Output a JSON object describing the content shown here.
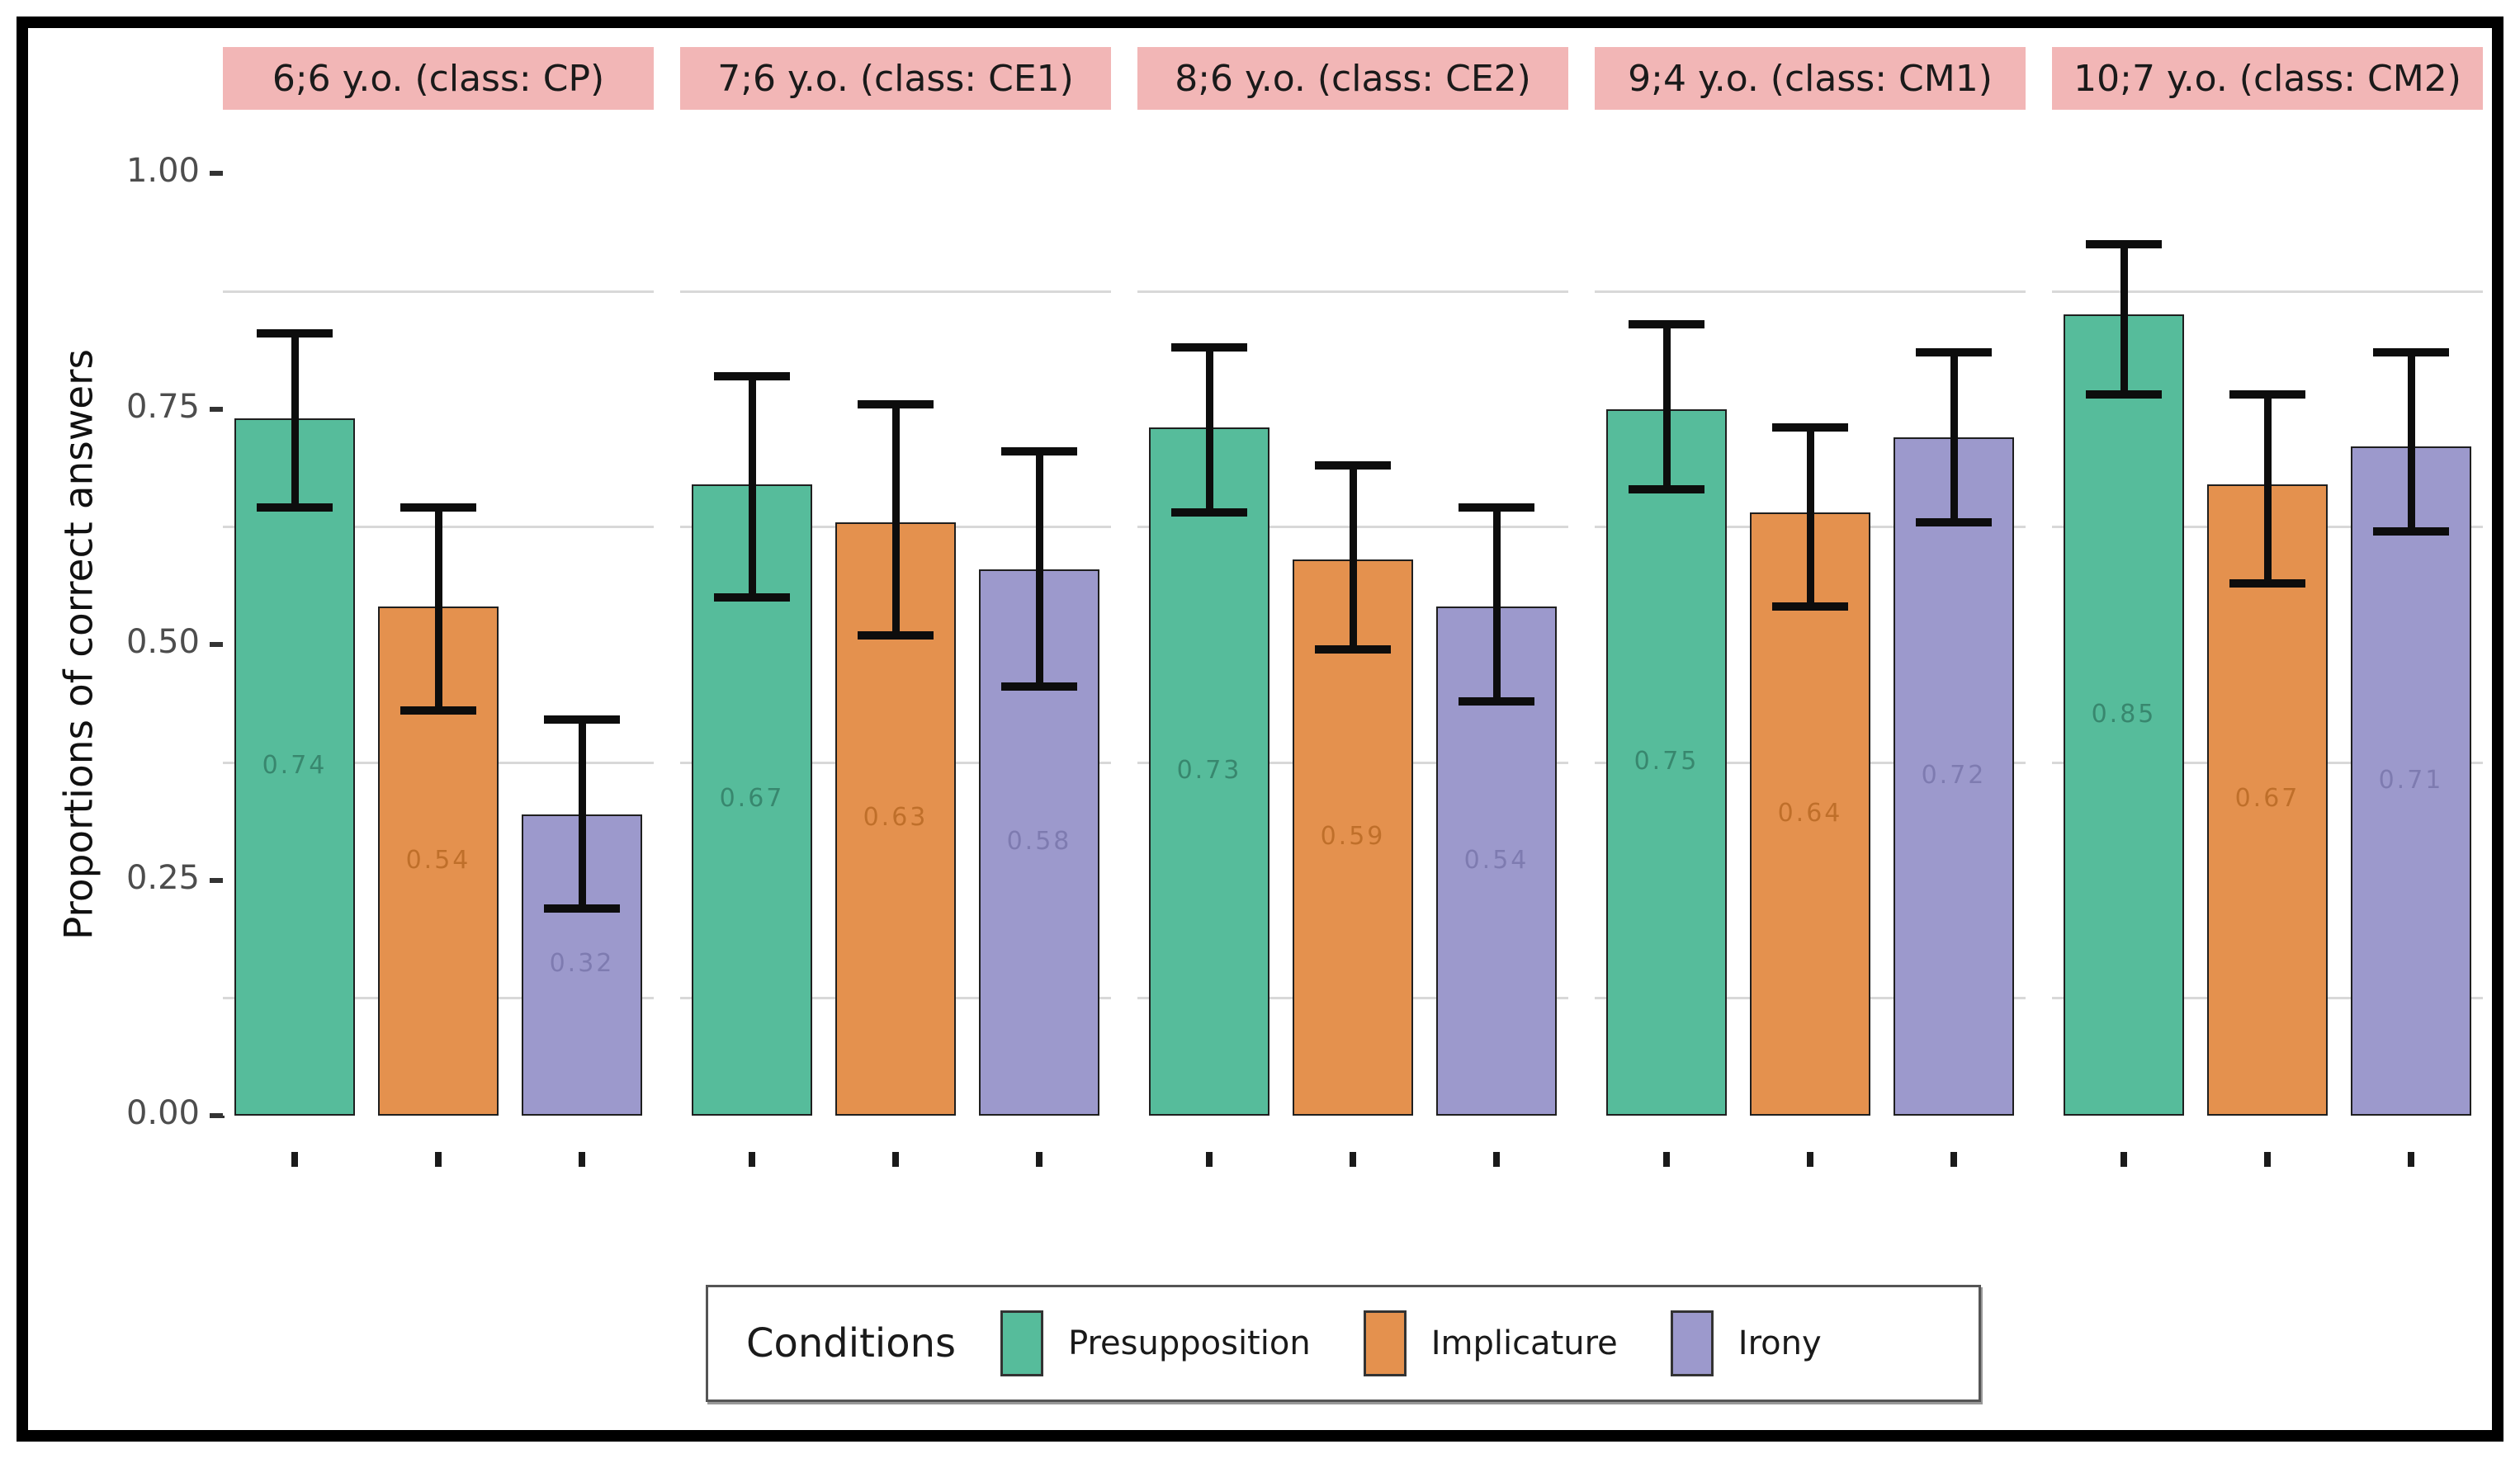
{
  "figure": {
    "background": "#ffffff",
    "frame_color": "#000000",
    "strip_bg": "#F2B6B6",
    "gridline_color": "#d8d8d8",
    "error_bar_color": "#0d0d0d"
  },
  "y_axis": {
    "title": "Proportions of correct answers",
    "ticks": [
      {
        "label": "1.00",
        "value": 1.0
      },
      {
        "label": "0.75",
        "value": 0.75
      },
      {
        "label": "0.50",
        "value": 0.5
      },
      {
        "label": "0.25",
        "value": 0.25
      },
      {
        "label": "0.00",
        "value": 0.0
      }
    ]
  },
  "legend": {
    "title": "Conditions",
    "items": [
      {
        "label": "Presupposition",
        "color": "#56BC9B"
      },
      {
        "label": "Implicature",
        "color": "#E4914E"
      },
      {
        "label": "Irony",
        "color": "#9C99CC"
      }
    ]
  },
  "chart_data": {
    "type": "bar",
    "subtype": "faceted-grouped-bar-with-error-bars",
    "title": "",
    "xlabel": "",
    "ylabel": "Proportions of correct answers",
    "ylim": [
      0,
      1.05
    ],
    "yticks": [
      0,
      0.25,
      0.5,
      0.75,
      1.0
    ],
    "minor_gridlines": [
      0.125,
      0.375,
      0.625,
      0.875
    ],
    "grid": "minor-horizontal-only",
    "legend_position": "bottom",
    "legend_title": "Conditions",
    "series_names": [
      "Presupposition",
      "Implicature",
      "Irony"
    ],
    "series_colors": {
      "Presupposition": "#56BC9B",
      "Implicature": "#E4914E",
      "Irony": "#9C99CC"
    },
    "value_label_colors": {
      "Presupposition": "#35826A",
      "Implicature": "#BC6C27",
      "Irony": "#7B78AE"
    },
    "facets": [
      {
        "label": "6;6 y.o. (class: CP)",
        "bars": [
          {
            "condition": "Presupposition",
            "value": 0.74,
            "label": "0.74",
            "ci": [
              0.645,
              0.83
            ]
          },
          {
            "condition": "Implicature",
            "value": 0.54,
            "label": "0.54",
            "ci": [
              0.43,
              0.645
            ]
          },
          {
            "condition": "Irony",
            "value": 0.32,
            "label": "0.32",
            "ci": [
              0.22,
              0.42
            ]
          }
        ]
      },
      {
        "label": "7;6 y.o. (class: CE1)",
        "bars": [
          {
            "condition": "Presupposition",
            "value": 0.67,
            "label": "0.67",
            "ci": [
              0.55,
              0.785
            ]
          },
          {
            "condition": "Implicature",
            "value": 0.63,
            "label": "0.63",
            "ci": [
              0.51,
              0.755
            ]
          },
          {
            "condition": "Irony",
            "value": 0.58,
            "label": "0.58",
            "ci": [
              0.455,
              0.705
            ]
          }
        ]
      },
      {
        "label": "8;6 y.o. (class: CE2)",
        "bars": [
          {
            "condition": "Presupposition",
            "value": 0.73,
            "label": "0.73",
            "ci": [
              0.64,
              0.815
            ]
          },
          {
            "condition": "Implicature",
            "value": 0.59,
            "label": "0.59",
            "ci": [
              0.495,
              0.69
            ]
          },
          {
            "condition": "Irony",
            "value": 0.54,
            "label": "0.54",
            "ci": [
              0.44,
              0.645
            ]
          }
        ]
      },
      {
        "label": "9;4 y.o. (class: CM1)",
        "bars": [
          {
            "condition": "Presupposition",
            "value": 0.75,
            "label": "0.75",
            "ci": [
              0.665,
              0.84
            ]
          },
          {
            "condition": "Implicature",
            "value": 0.64,
            "label": "0.64",
            "ci": [
              0.54,
              0.73
            ]
          },
          {
            "condition": "Irony",
            "value": 0.72,
            "label": "0.72",
            "ci": [
              0.63,
              0.81
            ]
          }
        ]
      },
      {
        "label": "10;7 y.o. (class: CM2)",
        "bars": [
          {
            "condition": "Presupposition",
            "value": 0.85,
            "label": "0.85",
            "ci": [
              0.765,
              0.925
            ]
          },
          {
            "condition": "Implicature",
            "value": 0.67,
            "label": "0.67",
            "ci": [
              0.565,
              0.765
            ]
          },
          {
            "condition": "Irony",
            "value": 0.71,
            "label": "0.71",
            "ci": [
              0.62,
              0.81
            ]
          }
        ]
      }
    ]
  }
}
